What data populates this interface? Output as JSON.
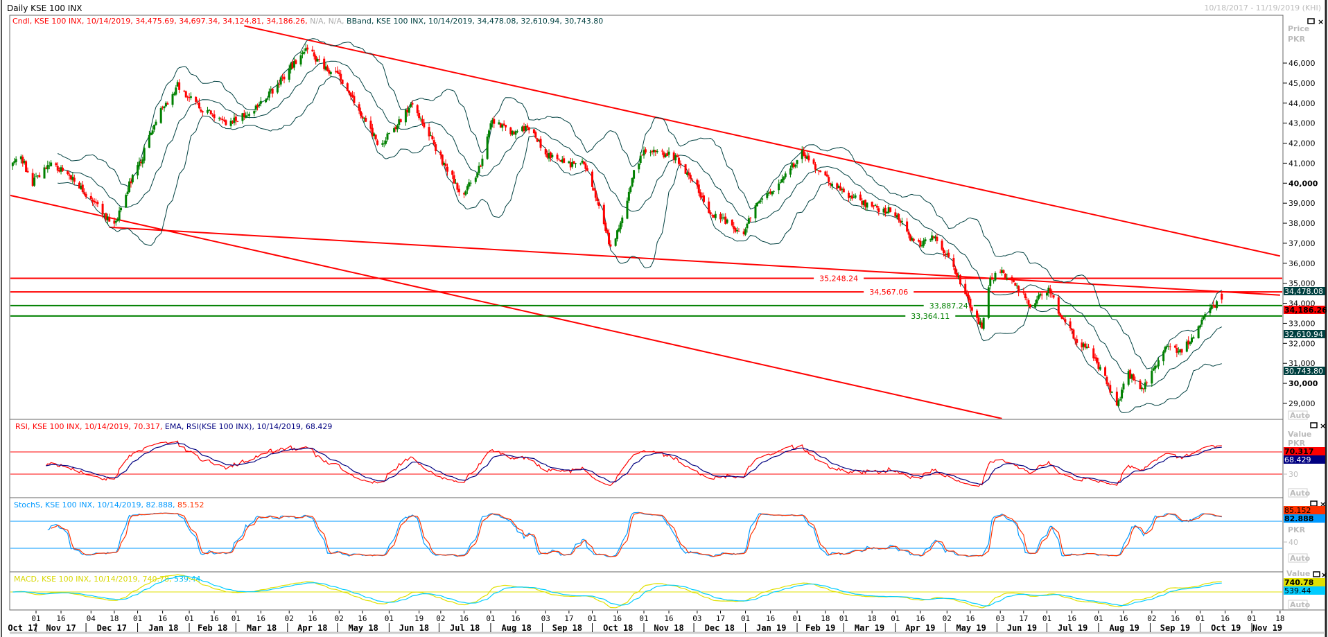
{
  "header": {
    "title": "Daily KSE 100 INX",
    "date_range": "10/18/2017 - 11/19/2019 (KHI)"
  },
  "panels": {
    "price": {
      "legend_cndl": "Cndl, KSE 100 INX, 10/14/2019, 34,475.69, 34,697.34, 34,124.81, 34,186.26,",
      "legend_na": "N/A, N/A,",
      "legend_bband": "BBand, KSE 100 INX, 10/14/2019, 34,478.08, 32,610.94, 30,743.80",
      "axis_title": "Price",
      "axis_unit": "PKR",
      "auto_label": "Auto",
      "value_boxes": [
        {
          "text": "34,478.08",
          "value": 34478.08,
          "bg": "#004040",
          "fg": "#ffffff"
        },
        {
          "text": "34,186.26",
          "value": 34186.26,
          "bg": "#ff0000",
          "fg": "#000000"
        },
        {
          "text": "32,610.94",
          "value": 32610.94,
          "bg": "#004040",
          "fg": "#ffffff"
        },
        {
          "text": "30,743.80",
          "value": 30743.8,
          "bg": "#004040",
          "fg": "#ffffff"
        }
      ]
    },
    "rsi": {
      "legend_rsi": "RSI, KSE 100 INX, 10/14/2019, 70.317,",
      "legend_ema": "EMA, RSI(KSE 100 INX), 10/14/2019, 68.429",
      "axis_title": "Value",
      "axis_unit": "PKR",
      "tick": "30",
      "auto_label": "Auto",
      "box_rsi": "70.317",
      "box_ema": "68.429"
    },
    "stoch": {
      "legend_k": "StochS, KSE 100 INX, 10/14/2019, 82.888,",
      "legend_d": "85.152",
      "axis_unit": "PKR",
      "tick": "40",
      "auto_label": "Auto",
      "box_d": "85.152",
      "box_k": "82.888"
    },
    "macd": {
      "legend_macd": "MACD, KSE 100 INX, 10/14/2019, 740.78,",
      "legend_signal": "539.44",
      "axis_title": "Value",
      "auto_label": "Auto",
      "box_macd": "740.78",
      "box_signal": "539.44"
    }
  },
  "colors": {
    "up": "#008000",
    "down": "#ff0000",
    "bband": "#004040",
    "rsi": "#ff0000",
    "ema": "#000080",
    "stoch_k": "#0099ff",
    "stoch_d": "#ff3300",
    "macd": "#e0e000",
    "signal": "#00ccff"
  },
  "chart_data": {
    "type": "candlestick",
    "title": "Daily KSE 100 INX",
    "ylabel": "Price PKR",
    "ylim": [
      28500,
      47200
    ],
    "yticks": [
      "46,000",
      "45,000",
      "44,000",
      "43,000",
      "42,000",
      "41,000",
      "40,000",
      "39,000",
      "38,000",
      "37,000",
      "36,000",
      "35,000",
      "34,000",
      "33,000",
      "32,000",
      "31,000",
      "30,000",
      "29,000"
    ],
    "ytick_values": [
      46000,
      45000,
      44000,
      43000,
      42000,
      41000,
      40000,
      39000,
      38000,
      37000,
      36000,
      35000,
      34000,
      33000,
      32000,
      31000,
      30000,
      29000
    ],
    "yticks_bold": [
      40000,
      30000
    ],
    "x_start": "2017-10-16",
    "x_end": "2019-11-22",
    "last_candle": {
      "date": "2019-10-14",
      "open": 34475.69,
      "high": 34697.34,
      "low": 34124.81,
      "close": 34186.26
    },
    "close_anchors": [
      [
        "2017-10-18",
        40900
      ],
      [
        "2017-10-22",
        41500
      ],
      [
        "2017-10-30",
        40000
      ],
      [
        "2017-11-10",
        41100
      ],
      [
        "2017-11-25",
        40000
      ],
      [
        "2017-12-08",
        38800
      ],
      [
        "2017-12-18",
        37900
      ],
      [
        "2017-12-24",
        39400
      ],
      [
        "2018-01-02",
        40900
      ],
      [
        "2018-01-12",
        43200
      ],
      [
        "2018-01-25",
        44900
      ],
      [
        "2018-02-07",
        43800
      ],
      [
        "2018-02-25",
        43000
      ],
      [
        "2018-03-12",
        43600
      ],
      [
        "2018-03-22",
        44500
      ],
      [
        "2018-04-02",
        45700
      ],
      [
        "2018-04-12",
        46800
      ],
      [
        "2018-04-23",
        45700
      ],
      [
        "2018-05-03",
        45300
      ],
      [
        "2018-05-14",
        43600
      ],
      [
        "2018-05-26",
        41900
      ],
      [
        "2018-06-05",
        42800
      ],
      [
        "2018-06-15",
        44000
      ],
      [
        "2018-06-23",
        42800
      ],
      [
        "2018-07-03",
        41100
      ],
      [
        "2018-07-15",
        39400
      ],
      [
        "2018-07-25",
        40700
      ],
      [
        "2018-08-02",
        43200
      ],
      [
        "2018-08-12",
        42600
      ],
      [
        "2018-08-24",
        42800
      ],
      [
        "2018-09-03",
        41500
      ],
      [
        "2018-09-16",
        40900
      ],
      [
        "2018-09-26",
        41100
      ],
      [
        "2018-10-06",
        38600
      ],
      [
        "2018-10-12",
        36700
      ],
      [
        "2018-10-21",
        38600
      ],
      [
        "2018-10-26",
        40700
      ],
      [
        "2018-11-02",
        41700
      ],
      [
        "2018-11-20",
        41300
      ],
      [
        "2018-11-30",
        40200
      ],
      [
        "2018-12-10",
        38600
      ],
      [
        "2018-12-20",
        38100
      ],
      [
        "2018-12-30",
        37300
      ],
      [
        "2019-01-07",
        39000
      ],
      [
        "2019-01-20",
        39800
      ],
      [
        "2019-02-04",
        41500
      ],
      [
        "2019-02-14",
        40500
      ],
      [
        "2019-03-01",
        39600
      ],
      [
        "2019-03-16",
        38800
      ],
      [
        "2019-03-31",
        38600
      ],
      [
        "2019-04-13",
        36900
      ],
      [
        "2019-04-25",
        37300
      ],
      [
        "2019-05-05",
        36000
      ],
      [
        "2019-05-15",
        34100
      ],
      [
        "2019-05-23",
        32800
      ],
      [
        "2019-05-28",
        35200
      ],
      [
        "2019-06-04",
        35600
      ],
      [
        "2019-06-12",
        34800
      ],
      [
        "2019-06-22",
        33900
      ],
      [
        "2019-07-02",
        34800
      ],
      [
        "2019-07-09",
        33300
      ],
      [
        "2019-07-19",
        32200
      ],
      [
        "2019-07-29",
        31400
      ],
      [
        "2019-08-06",
        30100
      ],
      [
        "2019-08-12",
        28900
      ],
      [
        "2019-08-19",
        30500
      ],
      [
        "2019-08-27",
        29700
      ],
      [
        "2019-09-04",
        30900
      ],
      [
        "2019-09-12",
        32000
      ],
      [
        "2019-09-19",
        31600
      ],
      [
        "2019-09-27",
        32400
      ],
      [
        "2019-10-04",
        33500
      ],
      [
        "2019-10-14",
        34186.26
      ]
    ],
    "trendlines": [
      {
        "name": "upper-channel",
        "from": [
          "2018-03-06",
          47860
        ],
        "to": [
          "2019-11-18",
          36360
        ],
        "color": "#ff0000"
      },
      {
        "name": "lower-channel",
        "from": [
          "2017-10-16",
          39400
        ],
        "to": [
          "2019-06-04",
          28240
        ],
        "color": "#ff0000"
      },
      {
        "name": "middle-trendline",
        "from": [
          "2017-12-15",
          37800
        ],
        "to": [
          "2019-11-18",
          34410
        ],
        "color": "#ff0000"
      }
    ],
    "hlines": [
      {
        "label": "35,248.24",
        "value": 35248.24,
        "color": "#ff0000",
        "label_date": "2019-02-26"
      },
      {
        "label": "34,567.06",
        "value": 34567.06,
        "color": "#ff0000",
        "label_date": "2019-03-28"
      },
      {
        "label": "33,887.24",
        "value": 33887.24,
        "color": "#008000",
        "label_date": "2019-05-03"
      },
      {
        "label": "33,364.11",
        "value": 33364.11,
        "color": "#008000",
        "label_date": "2019-04-22"
      }
    ],
    "indicators": {
      "bbands": {
        "period": 20,
        "stdev": 2,
        "last": [
          34478.08,
          32610.94,
          30743.8
        ]
      },
      "rsi": {
        "period": 14,
        "ema_period": 9,
        "levels": [
          70,
          30
        ],
        "last": [
          70.317,
          68.429
        ]
      },
      "stoch": {
        "k": 14,
        "smooth": 3,
        "d": 3,
        "levels": [
          80,
          20
        ],
        "last": [
          82.888,
          85.152
        ]
      },
      "macd": {
        "fast": 12,
        "slow": 26,
        "signal": 9,
        "last": [
          740.78,
          539.44
        ]
      }
    },
    "x_axis": {
      "months": [
        [
          "2017-10-01",
          "Oct 17"
        ],
        [
          "2017-11-01",
          "Nov 17"
        ],
        [
          "2017-12-01",
          "Dec 17"
        ],
        [
          "2018-01-01",
          "Jan 18"
        ],
        [
          "2018-02-01",
          "Feb 18"
        ],
        [
          "2018-03-01",
          "Mar 18"
        ],
        [
          "2018-04-01",
          "Apr 18"
        ],
        [
          "2018-05-01",
          "May 18"
        ],
        [
          "2018-06-01",
          "Jun 18"
        ],
        [
          "2018-07-01",
          "Jul 18"
        ],
        [
          "2018-08-01",
          "Aug 18"
        ],
        [
          "2018-09-01",
          "Sep 18"
        ],
        [
          "2018-10-01",
          "Oct 18"
        ],
        [
          "2018-11-01",
          "Nov 18"
        ],
        [
          "2018-12-01",
          "Dec 18"
        ],
        [
          "2019-01-01",
          "Jan 19"
        ],
        [
          "2019-02-01",
          "Feb 19"
        ],
        [
          "2019-03-01",
          "Mar 19"
        ],
        [
          "2019-04-01",
          "Apr 19"
        ],
        [
          "2019-05-01",
          "May 19"
        ],
        [
          "2019-06-01",
          "Jun 19"
        ],
        [
          "2019-07-01",
          "Jul 19"
        ],
        [
          "2019-08-01",
          "Aug 19"
        ],
        [
          "2019-09-01",
          "Sep 19"
        ],
        [
          "2019-10-01",
          "Oct 19"
        ],
        [
          "2019-11-01",
          "Nov 19"
        ]
      ],
      "day_ticks": [
        "2017-11-01",
        "2017-11-16",
        "2017-12-04",
        "2017-12-18",
        "2018-01-01",
        "2018-01-16",
        "2018-02-01",
        "2018-02-16",
        "2018-03-01",
        "2018-03-16",
        "2018-04-02",
        "2018-04-16",
        "2018-05-02",
        "2018-05-16",
        "2018-06-01",
        "2018-06-19",
        "2018-07-02",
        "2018-07-16",
        "2018-08-01",
        "2018-08-16",
        "2018-09-03",
        "2018-09-17",
        "2018-10-01",
        "2018-10-16",
        "2018-11-01",
        "2018-11-16",
        "2018-12-03",
        "2018-12-17",
        "2019-01-01",
        "2019-01-16",
        "2019-02-01",
        "2019-02-18",
        "2019-03-01",
        "2019-03-18",
        "2019-04-01",
        "2019-04-16",
        "2019-05-02",
        "2019-05-16",
        "2019-06-03",
        "2019-06-17",
        "2019-07-01",
        "2019-07-16",
        "2019-08-01",
        "2019-08-16",
        "2019-09-02",
        "2019-09-16",
        "2019-10-01",
        "2019-10-16",
        "2019-11-01",
        "2019-11-18"
      ]
    }
  }
}
